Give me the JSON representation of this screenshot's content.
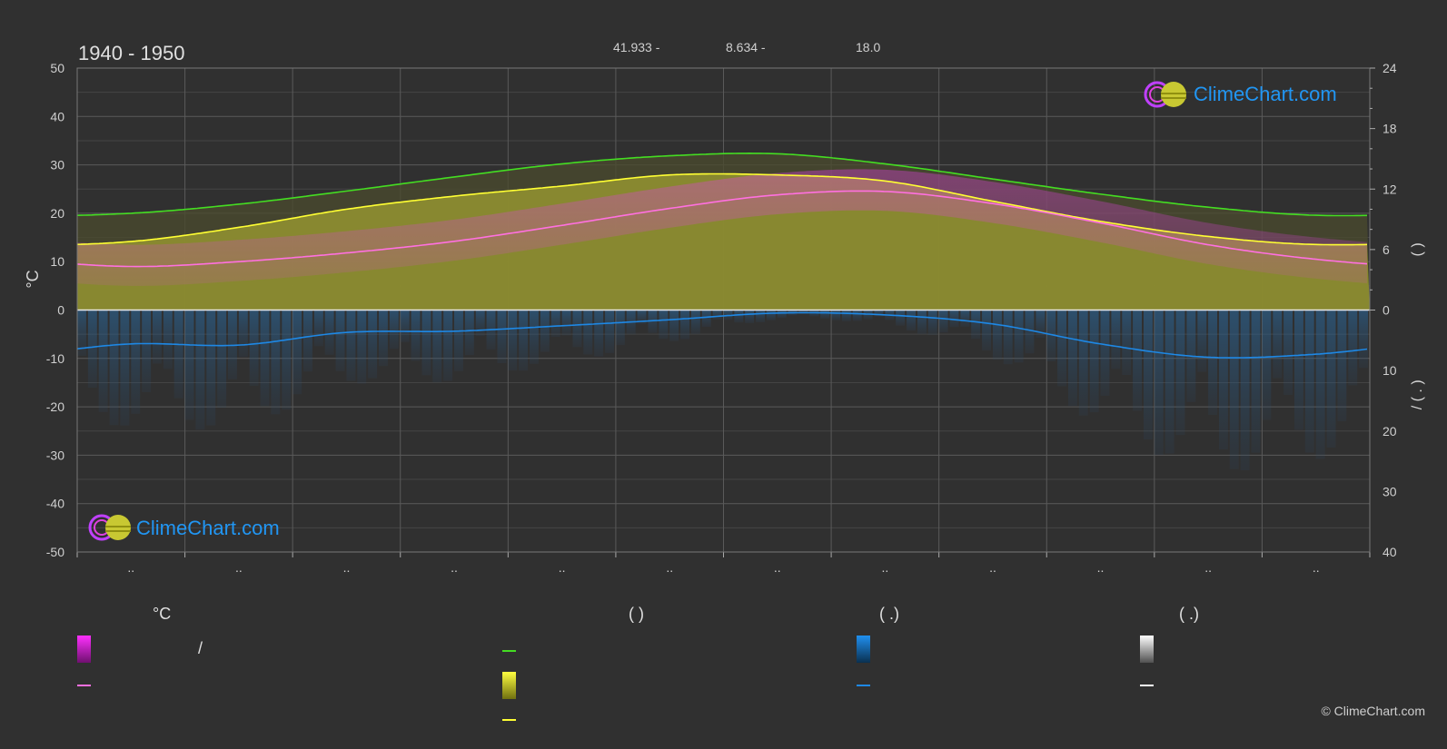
{
  "header": {
    "title": "1940 - 1950",
    "coord_lat": "41.933 -",
    "coord_lon": "8.634 -",
    "elevation": "18.0"
  },
  "logo": {
    "text": "ClimeChart.com"
  },
  "copyright": "© ClimeChart.com",
  "legend": {
    "temp_header": "°C",
    "sun_header": "(          )",
    "rain_header": "(   .)",
    "snow_header": "(   .)",
    "temp_range_slash": "/"
  },
  "colors": {
    "background": "#303030",
    "temp_range": "#e040e0",
    "temp_mean": "#ff70e0",
    "daylight": "#44dd22",
    "sunshine_area": "#c8c832",
    "sunshine_line": "#ffff33",
    "rain": "#1e88e5",
    "snow": "#ffffff"
  },
  "chart_data": {
    "type": "area",
    "months": [
      "..",
      "..",
      "..",
      "..",
      "..",
      "..",
      "..",
      "..",
      "..",
      "..",
      "..",
      ".."
    ],
    "left_axis": {
      "label": "°C",
      "range": [
        -50,
        50
      ],
      "ticks": [
        "50",
        "40",
        "30",
        "20",
        "10",
        "0",
        "-10",
        "-20",
        "-30",
        "-40",
        "-50"
      ]
    },
    "right_axis_top": {
      "label": "(     )",
      "range": [
        0,
        24
      ],
      "ticks": [
        "24",
        "18",
        "12",
        "6",
        "0"
      ]
    },
    "right_axis_bottom": {
      "label": "/  (  .  )",
      "range": [
        0,
        40
      ],
      "ticks": [
        "10",
        "20",
        "30",
        "40"
      ]
    },
    "grid": true,
    "series": [
      {
        "key": "daylight_hours",
        "axis": "right_top",
        "values": [
          9.6,
          10.5,
          11.8,
          13.2,
          14.5,
          15.3,
          15.5,
          14.5,
          13.0,
          11.5,
          10.2,
          9.4
        ]
      },
      {
        "key": "sunshine_hours",
        "axis": "right_top",
        "values": [
          6.8,
          8.2,
          10.0,
          11.3,
          12.3,
          13.4,
          13.4,
          12.8,
          10.8,
          8.8,
          7.3,
          6.5
        ]
      },
      {
        "key": "temp_mean",
        "axis": "left",
        "values": [
          9.0,
          10.0,
          11.8,
          14.2,
          17.5,
          21.0,
          23.8,
          24.5,
          22.0,
          18.0,
          13.5,
          10.5
        ]
      },
      {
        "key": "rain_mm",
        "axis": "right_bottom",
        "values": [
          5.6,
          5.8,
          3.7,
          3.5,
          2.6,
          1.6,
          0.5,
          0.8,
          2.3,
          5.6,
          7.8,
          7.3
        ]
      }
    ]
  }
}
